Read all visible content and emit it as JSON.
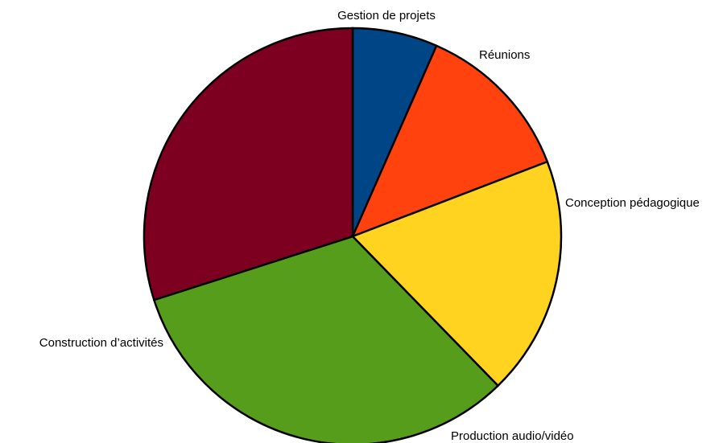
{
  "chart_data": {
    "type": "pie",
    "title": "",
    "slices": [
      {
        "label": "Gestion de projets",
        "value": 5.5,
        "color": "#004586"
      },
      {
        "label": "Réunions",
        "value": 10.5,
        "color": "#ff420e"
      },
      {
        "label": "Conception pédagogique",
        "value": 15.5,
        "color": "#ffd320"
      },
      {
        "label": "Production audio/vidéo",
        "value": 27,
        "color": "#579d1c"
      },
      {
        "label": "Construction d’activités",
        "value": 25,
        "color": "#7e0021"
      }
    ],
    "legend": "none",
    "start_angle": "top, clockwise"
  }
}
